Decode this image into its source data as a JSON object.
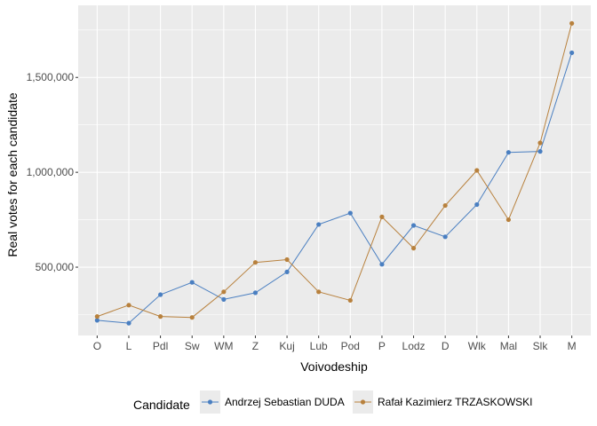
{
  "chart_data": {
    "type": "line",
    "xlabel": "Voivodeship",
    "ylabel": "Real votes for each candidate",
    "categories": [
      "O",
      "L",
      "Pdl",
      "Sw",
      "WM",
      "Z",
      "Kuj",
      "Lub",
      "Pod",
      "P",
      "Lodz",
      "D",
      "Wlk",
      "Mal",
      "Slk",
      "M"
    ],
    "ylim": [
      140000,
      1880000
    ],
    "yticks": [
      500000,
      1000000,
      1500000
    ],
    "ytick_labels": [
      "500,000",
      "1,000,000",
      "1,500,000"
    ],
    "grid": true,
    "legend": {
      "title": "Candidate",
      "position": "bottom"
    },
    "series": [
      {
        "name": "Andrzej Sebastian DUDA",
        "color": "#4a7fc1",
        "values": [
          220000,
          205000,
          355000,
          420000,
          330000,
          365000,
          475000,
          725000,
          785000,
          515000,
          720000,
          660000,
          830000,
          1105000,
          1110000,
          1630000
        ]
      },
      {
        "name": "Rafał Kazimierz TRZASKOWSKI",
        "color": "#b8813d",
        "values": [
          240000,
          300000,
          240000,
          235000,
          370000,
          525000,
          540000,
          370000,
          325000,
          765000,
          600000,
          825000,
          1010000,
          750000,
          1155000,
          1785000
        ]
      }
    ]
  }
}
